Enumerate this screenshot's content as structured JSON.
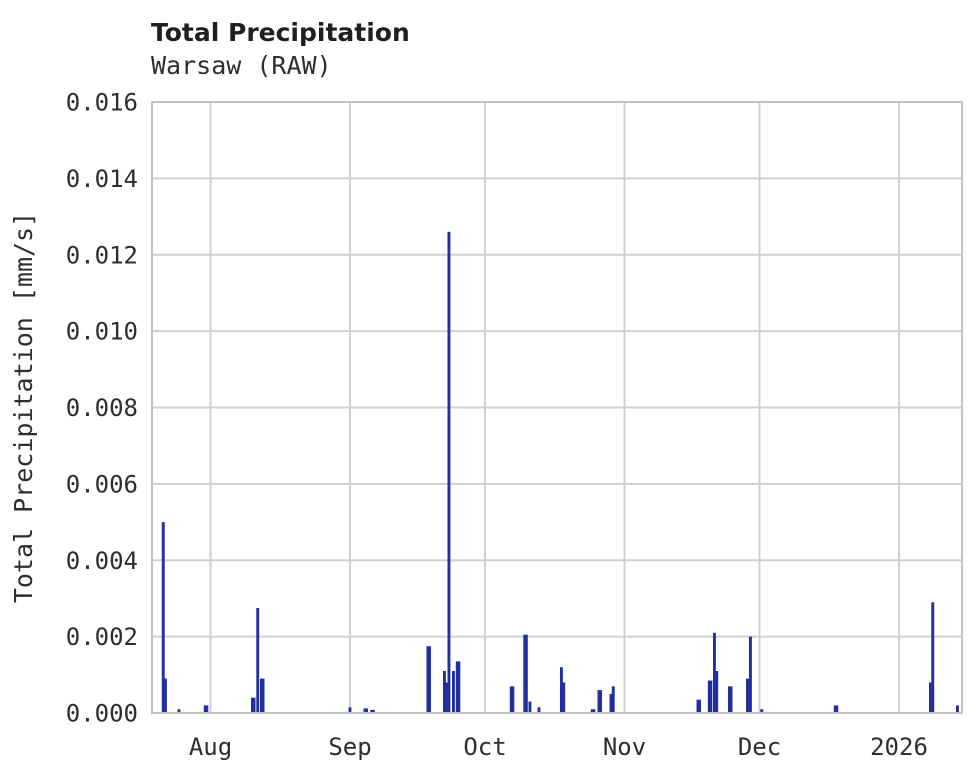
{
  "header": {
    "title": "Total Precipitation",
    "subtitle": "Warsaw (RAW)"
  },
  "chart_data": {
    "type": "bar",
    "title": "Total Precipitation",
    "subtitle": "Warsaw (RAW)",
    "xlabel": "",
    "ylabel": "Total Precipitation [mm/s]",
    "ylim": [
      0,
      0.016
    ],
    "ytick_labels": [
      "0.000",
      "0.002",
      "0.004",
      "0.006",
      "0.008",
      "0.010",
      "0.012",
      "0.014",
      "0.016"
    ],
    "x_domain": [
      "2025-07-19",
      "2026-01-15"
    ],
    "xticks": [
      {
        "label": "Aug",
        "date": "2025-08-01"
      },
      {
        "label": "Sep",
        "date": "2025-09-01"
      },
      {
        "label": "Oct",
        "date": "2025-10-01"
      },
      {
        "label": "Nov",
        "date": "2025-11-01"
      },
      {
        "label": "Dec",
        "date": "2025-12-01"
      },
      {
        "label": "2026",
        "date": "2026-01-01"
      }
    ],
    "grid": true,
    "legend": "none",
    "bar_color": "#242f9e",
    "grid_color": "#d0d0d0",
    "border_color": "#c2c2c2",
    "points": [
      {
        "date": "2025-07-21T12:00",
        "value": 0.005
      },
      {
        "date": "2025-07-22",
        "value": 0.0009
      },
      {
        "date": "2025-07-25",
        "value": 0.0001
      },
      {
        "date": "2025-07-31",
        "value": 0.0002,
        "w": 1
      },
      {
        "date": "2025-08-10T12:00",
        "value": 0.0004,
        "w": 1
      },
      {
        "date": "2025-08-11T12:00",
        "value": 0.00275
      },
      {
        "date": "2025-08-12T12:00",
        "value": 0.0009,
        "w": 1
      },
      {
        "date": "2025-09-01",
        "value": 0.00015
      },
      {
        "date": "2025-09-04T12:00",
        "value": 0.00012,
        "w": 1
      },
      {
        "date": "2025-09-06",
        "value": 8e-05,
        "w": 1
      },
      {
        "date": "2025-09-18T12:00",
        "value": 0.00175,
        "w": 1
      },
      {
        "date": "2025-09-22",
        "value": 0.0011
      },
      {
        "date": "2025-09-22T12:00",
        "value": 0.0008
      },
      {
        "date": "2025-09-23",
        "value": 0.0126
      },
      {
        "date": "2025-09-24",
        "value": 0.0011
      },
      {
        "date": "2025-09-25",
        "value": 0.00135,
        "w": 1
      },
      {
        "date": "2025-10-07",
        "value": 0.0007,
        "w": 1
      },
      {
        "date": "2025-10-10",
        "value": 0.00205,
        "w": 1
      },
      {
        "date": "2025-10-11",
        "value": 0.0003
      },
      {
        "date": "2025-10-13",
        "value": 0.00015
      },
      {
        "date": "2025-10-18",
        "value": 0.0012
      },
      {
        "date": "2025-10-18T12:00",
        "value": 0.0008
      },
      {
        "date": "2025-10-25",
        "value": 0.0001,
        "w": 1
      },
      {
        "date": "2025-10-26T12:00",
        "value": 0.0006,
        "w": 1
      },
      {
        "date": "2025-10-29",
        "value": 0.0005
      },
      {
        "date": "2025-10-29T12:00",
        "value": 0.0007
      },
      {
        "date": "2025-11-17T12:00",
        "value": 0.00035,
        "w": 1
      },
      {
        "date": "2025-11-20",
        "value": 0.00085,
        "w": 1
      },
      {
        "date": "2025-11-21",
        "value": 0.0021
      },
      {
        "date": "2025-11-21T12:00",
        "value": 0.0011
      },
      {
        "date": "2025-11-24T12:00",
        "value": 0.0007,
        "w": 1
      },
      {
        "date": "2025-11-28T12:00",
        "value": 0.0009,
        "w": 1
      },
      {
        "date": "2025-11-29",
        "value": 0.002
      },
      {
        "date": "2025-12-01T12:00",
        "value": 0.0001
      },
      {
        "date": "2025-12-18",
        "value": 0.0002,
        "w": 1
      },
      {
        "date": "2026-01-08",
        "value": 0.0008
      },
      {
        "date": "2026-01-08T12:00",
        "value": 0.0029
      },
      {
        "date": "2026-01-14",
        "value": 0.0002
      }
    ]
  }
}
